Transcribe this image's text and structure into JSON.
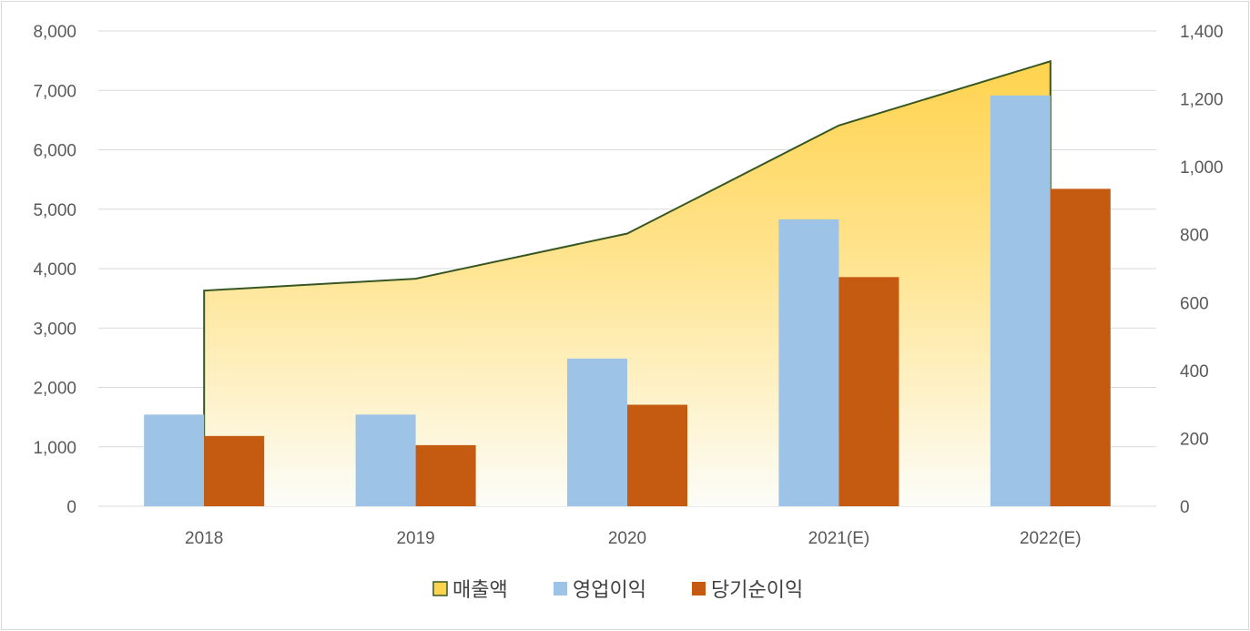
{
  "chart_data": {
    "type": "bar",
    "categories": [
      "2018",
      "2019",
      "2020",
      "2021(E)",
      "2022(E)"
    ],
    "series": [
      {
        "name": "매출액",
        "kind": "area",
        "axis": "left",
        "values": [
          3630,
          3830,
          4590,
          6410,
          7490
        ],
        "color": "#ffd34e",
        "stroke": "#375623"
      },
      {
        "name": "영업이익",
        "kind": "bar",
        "axis": "right",
        "values": [
          270,
          270,
          435,
          845,
          1210
        ],
        "color": "#9dc3e6"
      },
      {
        "name": "당기순이익",
        "kind": "bar",
        "axis": "right",
        "values": [
          207,
          180,
          299,
          675,
          935
        ],
        "color": "#c55a11"
      }
    ],
    "y_left": {
      "ylim": [
        0,
        8000
      ],
      "ticks": [
        "0",
        "1,000",
        "2,000",
        "3,000",
        "4,000",
        "5,000",
        "6,000",
        "7,000",
        "8,000"
      ]
    },
    "y_right": {
      "ylim": [
        0,
        1400
      ],
      "ticks": [
        "0",
        "200",
        "400",
        "600",
        "800",
        "1,000",
        "1,200",
        "1,400"
      ]
    },
    "grid": true,
    "legend_position": "bottom",
    "title": "",
    "xlabel": "",
    "ylabel": ""
  }
}
